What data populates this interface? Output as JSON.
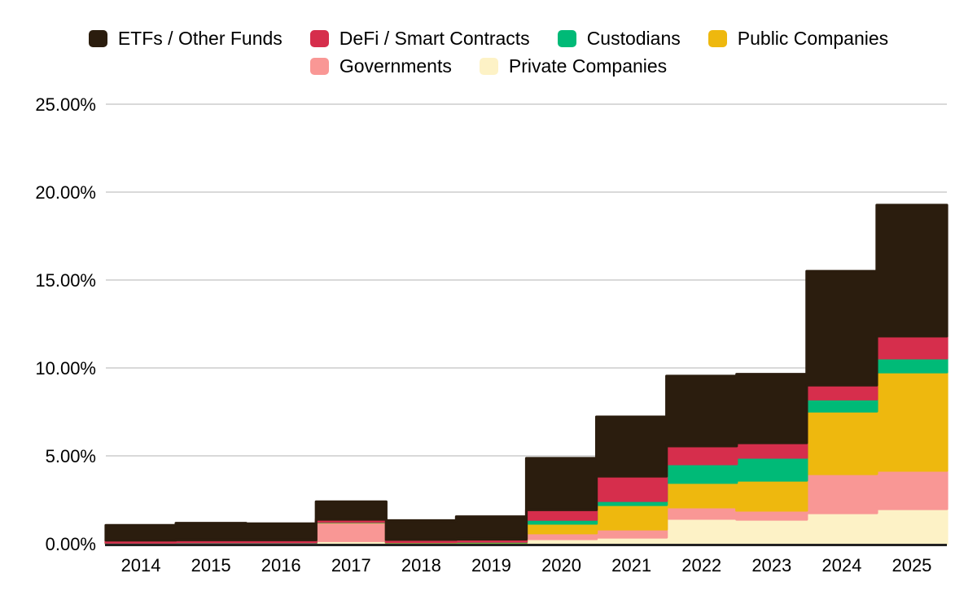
{
  "page": {
    "background": "#ffffff"
  },
  "colors": {
    "gridline": "#d9d9d9",
    "axis_line": "#222222",
    "text": "#000000"
  },
  "legend": {
    "position": "top",
    "order": [
      "etfs-other-funds",
      "defi-smart-contracts",
      "custodians",
      "public-companies",
      "governments",
      "private-companies"
    ]
  },
  "chart_data": {
    "type": "area",
    "variant": "stacked-stepped-area",
    "title": "",
    "xlabel": "",
    "ylabel": "",
    "grid": true,
    "y_max": 25,
    "y_ticks": [
      {
        "value": 0,
        "label": "0.00%"
      },
      {
        "value": 5,
        "label": "5.00%"
      },
      {
        "value": 10,
        "label": "10.00%"
      },
      {
        "value": 15,
        "label": "15.00%"
      },
      {
        "value": 20,
        "label": "20.00%"
      },
      {
        "value": 25,
        "label": "25.00%"
      }
    ],
    "x_categories": [
      "2014",
      "2015",
      "2016",
      "2017",
      "2018",
      "2019",
      "2020",
      "2021",
      "2022",
      "2023",
      "2024",
      "2025"
    ],
    "series": [
      {
        "id": "private-companies",
        "name": "Private Companies",
        "color": "#fdf2c6",
        "values": [
          0.02,
          0.02,
          0.02,
          0.17,
          0.03,
          0.03,
          0.28,
          0.37,
          1.44,
          1.39,
          1.76,
          1.99
        ]
      },
      {
        "id": "governments",
        "name": "Governments",
        "color": "#f99795",
        "values": [
          0.02,
          0.03,
          0.03,
          1.05,
          0.04,
          0.04,
          0.33,
          0.46,
          0.65,
          0.51,
          2.22,
          2.18
        ]
      },
      {
        "id": "public-companies",
        "name": "Public Companies",
        "color": "#eeb80e",
        "values": [
          0.02,
          0.02,
          0.02,
          0.02,
          0.02,
          0.03,
          0.55,
          1.39,
          1.39,
          1.71,
          3.56,
          5.6
        ]
      },
      {
        "id": "custodians",
        "name": "Custodians",
        "color": "#00ba77",
        "values": [
          0.02,
          0.02,
          0.02,
          0.02,
          0.02,
          0.03,
          0.22,
          0.23,
          1.06,
          1.3,
          0.69,
          0.79
        ]
      },
      {
        "id": "defi-smart-contracts",
        "name": "DeFi / Smart Contracts",
        "color": "#d62e4c",
        "values": [
          0.12,
          0.13,
          0.13,
          0.13,
          0.13,
          0.13,
          0.55,
          1.39,
          1.02,
          0.83,
          0.79,
          1.25
        ]
      },
      {
        "id": "etfs-other-funds",
        "name": "ETFs / Other Funds",
        "color": "#2b1d0e",
        "values": [
          0.85,
          0.95,
          0.92,
          1.0,
          1.08,
          1.28,
          2.93,
          3.38,
          3.98,
          3.9,
          6.48,
          7.45
        ]
      }
    ],
    "totals_by_year": [
      1.05,
      1.17,
      1.14,
      2.39,
      1.32,
      1.54,
      4.86,
      7.22,
      9.54,
      9.64,
      15.5,
      19.26
    ],
    "legend_position": "top"
  }
}
